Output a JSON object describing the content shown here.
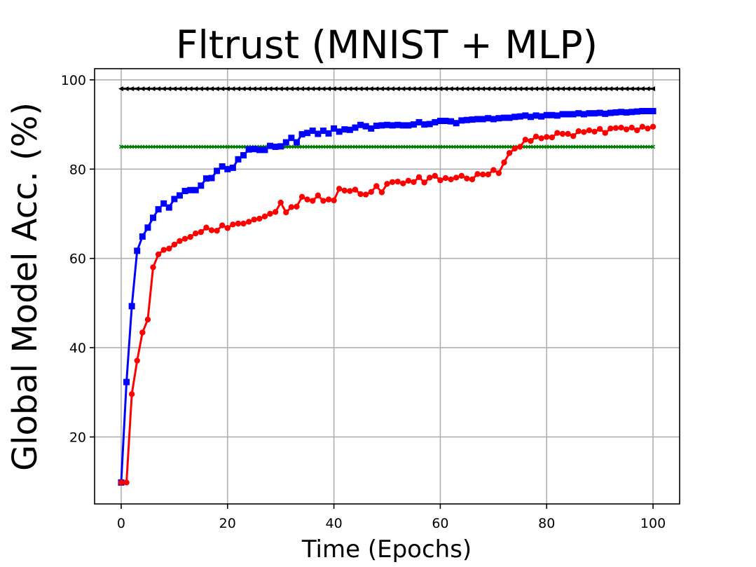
{
  "chart_data": {
    "type": "line",
    "title": "Fltrust (MNIST + MLP)",
    "xlabel": "Time (Epochs)",
    "ylabel": "Global Model Acc. (%)",
    "xlim": [
      -5,
      105
    ],
    "ylim": [
      5,
      102.5
    ],
    "xticks": [
      0,
      20,
      40,
      60,
      80,
      100
    ],
    "yticks": [
      20,
      40,
      60,
      80,
      100
    ],
    "grid": true,
    "legend": "none",
    "series": [
      {
        "color": "#000000",
        "marker": "triangle-left",
        "x": [
          0,
          1,
          2,
          3,
          4,
          5,
          6,
          7,
          8,
          9,
          10,
          11,
          12,
          13,
          14,
          15,
          16,
          17,
          18,
          19,
          20,
          21,
          22,
          23,
          24,
          25,
          26,
          27,
          28,
          29,
          30,
          31,
          32,
          33,
          34,
          35,
          36,
          37,
          38,
          39,
          40,
          41,
          42,
          43,
          44,
          45,
          46,
          47,
          48,
          49,
          50,
          51,
          52,
          53,
          54,
          55,
          56,
          57,
          58,
          59,
          60,
          61,
          62,
          63,
          64,
          65,
          66,
          67,
          68,
          69,
          70,
          71,
          72,
          73,
          74,
          75,
          76,
          77,
          78,
          79,
          80,
          81,
          82,
          83,
          84,
          85,
          86,
          87,
          88,
          89,
          90,
          91,
          92,
          93,
          94,
          95,
          96,
          97,
          98,
          99,
          100
        ],
        "y": [
          98,
          98,
          98,
          98,
          98,
          98,
          98,
          98,
          98,
          98,
          98,
          98,
          98,
          98,
          98,
          98,
          98,
          98,
          98,
          98,
          98,
          98,
          98,
          98,
          98,
          98,
          98,
          98,
          98,
          98,
          98,
          98,
          98,
          98,
          98,
          98,
          98,
          98,
          98,
          98,
          98,
          98,
          98,
          98,
          98,
          98,
          98,
          98,
          98,
          98,
          98,
          98,
          98,
          98,
          98,
          98,
          98,
          98,
          98,
          98,
          98,
          98,
          98,
          98,
          98,
          98,
          98,
          98,
          98,
          98,
          98,
          98,
          98,
          98,
          98,
          98,
          98,
          98,
          98,
          98,
          98,
          98,
          98,
          98,
          98,
          98,
          98,
          98,
          98,
          98,
          98,
          98,
          98,
          98,
          98,
          98,
          98,
          98,
          98,
          98,
          98
        ]
      },
      {
        "color": "#008000",
        "marker": "x",
        "x": [
          0,
          1,
          2,
          3,
          4,
          5,
          6,
          7,
          8,
          9,
          10,
          11,
          12,
          13,
          14,
          15,
          16,
          17,
          18,
          19,
          20,
          21,
          22,
          23,
          24,
          25,
          26,
          27,
          28,
          29,
          30,
          31,
          32,
          33,
          34,
          35,
          36,
          37,
          38,
          39,
          40,
          41,
          42,
          43,
          44,
          45,
          46,
          47,
          48,
          49,
          50,
          51,
          52,
          53,
          54,
          55,
          56,
          57,
          58,
          59,
          60,
          61,
          62,
          63,
          64,
          65,
          66,
          67,
          68,
          69,
          70,
          71,
          72,
          73,
          74,
          75,
          76,
          77,
          78,
          79,
          80,
          81,
          82,
          83,
          84,
          85,
          86,
          87,
          88,
          89,
          90,
          91,
          92,
          93,
          94,
          95,
          96,
          97,
          98,
          99,
          100
        ],
        "y": [
          85,
          85,
          85,
          85,
          85,
          85,
          85,
          85,
          85,
          85,
          85,
          85,
          85,
          85,
          85,
          85,
          85,
          85,
          85,
          85,
          85,
          85,
          85,
          85,
          85,
          85,
          85,
          85,
          85,
          85,
          85,
          85,
          85,
          85,
          85,
          85,
          85,
          85,
          85,
          85,
          85,
          85,
          85,
          85,
          85,
          85,
          85,
          85,
          85,
          85,
          85,
          85,
          85,
          85,
          85,
          85,
          85,
          85,
          85,
          85,
          85,
          85,
          85,
          85,
          85,
          85,
          85,
          85,
          85,
          85,
          85,
          85,
          85,
          85,
          85,
          85,
          85,
          85,
          85,
          85,
          85,
          85,
          85,
          85,
          85,
          85,
          85,
          85,
          85,
          85,
          85,
          85,
          85,
          85,
          85,
          85,
          85,
          85,
          85,
          85,
          85
        ]
      },
      {
        "color": "#0000ff",
        "marker": "square",
        "x": [
          0,
          1,
          2,
          3,
          4,
          5,
          6,
          7,
          8,
          9,
          10,
          11,
          12,
          13,
          14,
          15,
          16,
          17,
          18,
          19,
          20,
          21,
          22,
          23,
          24,
          25,
          26,
          27,
          28,
          29,
          30,
          31,
          32,
          33,
          34,
          35,
          36,
          37,
          38,
          39,
          40,
          41,
          42,
          43,
          44,
          45,
          46,
          47,
          48,
          49,
          50,
          51,
          52,
          53,
          54,
          55,
          56,
          57,
          58,
          59,
          60,
          61,
          62,
          63,
          64,
          65,
          66,
          67,
          68,
          69,
          70,
          71,
          72,
          73,
          74,
          75,
          76,
          77,
          78,
          79,
          80,
          81,
          82,
          83,
          84,
          85,
          86,
          87,
          88,
          89,
          90,
          91,
          92,
          93,
          94,
          95,
          96,
          97,
          98,
          99,
          100
        ],
        "y": [
          9.8,
          32.3,
          49.3,
          61.7,
          64.9,
          66.9,
          69.1,
          71.0,
          72.3,
          71.4,
          73.3,
          74.1,
          75.1,
          75.3,
          75.3,
          76.3,
          77.9,
          78.0,
          79.6,
          80.6,
          80.0,
          80.3,
          82.2,
          83.1,
          84.4,
          84.5,
          84.3,
          84.3,
          85.2,
          85.0,
          85.1,
          86.0,
          87.0,
          86.0,
          87.8,
          88.1,
          88.6,
          87.9,
          88.6,
          88.0,
          89.1,
          88.4,
          88.9,
          88.8,
          89.3,
          89.9,
          89.6,
          89.1,
          89.7,
          89.8,
          89.9,
          89.8,
          89.9,
          89.8,
          89.8,
          90.0,
          90.5,
          90.0,
          90.1,
          90.5,
          90.8,
          90.8,
          90.7,
          90.3,
          90.9,
          91.0,
          91.1,
          91.2,
          91.2,
          91.4,
          91.2,
          91.4,
          91.5,
          91.5,
          91.7,
          91.8,
          92.0,
          91.7,
          92.0,
          91.8,
          92.1,
          92.1,
          92.0,
          92.3,
          92.3,
          92.3,
          92.5,
          92.3,
          92.5,
          92.5,
          92.6,
          92.4,
          92.6,
          92.7,
          92.8,
          92.7,
          92.8,
          92.9,
          93.0,
          93.0,
          93.0
        ]
      },
      {
        "color": "#ff0000",
        "marker": "circle",
        "x": [
          0,
          1,
          2,
          3,
          4,
          5,
          6,
          7,
          8,
          9,
          10,
          11,
          12,
          13,
          14,
          15,
          16,
          17,
          18,
          19,
          20,
          21,
          22,
          23,
          24,
          25,
          26,
          27,
          28,
          29,
          30,
          31,
          32,
          33,
          34,
          35,
          36,
          37,
          38,
          39,
          40,
          41,
          42,
          43,
          44,
          45,
          46,
          47,
          48,
          49,
          50,
          51,
          52,
          53,
          54,
          55,
          56,
          57,
          58,
          59,
          60,
          61,
          62,
          63,
          64,
          65,
          66,
          67,
          68,
          69,
          70,
          71,
          72,
          73,
          74,
          75,
          76,
          77,
          78,
          79,
          80,
          81,
          82,
          83,
          84,
          85,
          86,
          87,
          88,
          89,
          90,
          91,
          92,
          93,
          94,
          95,
          96,
          97,
          98,
          99,
          100
        ],
        "y": [
          9.8,
          9.8,
          29.6,
          37.1,
          43.4,
          46.3,
          58.0,
          60.9,
          61.9,
          62.2,
          63.1,
          63.9,
          64.4,
          64.8,
          65.6,
          65.9,
          66.9,
          66.3,
          66.2,
          67.4,
          66.8,
          67.6,
          67.8,
          67.8,
          68.2,
          68.7,
          68.9,
          69.4,
          70.0,
          70.4,
          72.5,
          70.3,
          71.5,
          71.6,
          73.8,
          73.2,
          72.9,
          74.1,
          72.9,
          73.2,
          73.0,
          75.6,
          75.2,
          75.1,
          75.4,
          74.4,
          74.3,
          74.9,
          76.2,
          74.8,
          76.7,
          77.1,
          77.2,
          76.8,
          77.4,
          77.1,
          78.2,
          77.0,
          78.1,
          78.5,
          77.5,
          78.0,
          77.7,
          78.1,
          78.5,
          77.9,
          77.7,
          78.9,
          78.8,
          78.8,
          79.8,
          79.1,
          81.5,
          83.6,
          84.6,
          85.0,
          86.6,
          86.3,
          87.3,
          86.9,
          87.2,
          87.1,
          88.1,
          87.9,
          87.9,
          87.4,
          88.5,
          88.3,
          88.7,
          88.4,
          89.0,
          88.1,
          89.1,
          89.2,
          89.3,
          88.9,
          89.3,
          88.7,
          89.5,
          89.1,
          89.5
        ]
      }
    ]
  }
}
